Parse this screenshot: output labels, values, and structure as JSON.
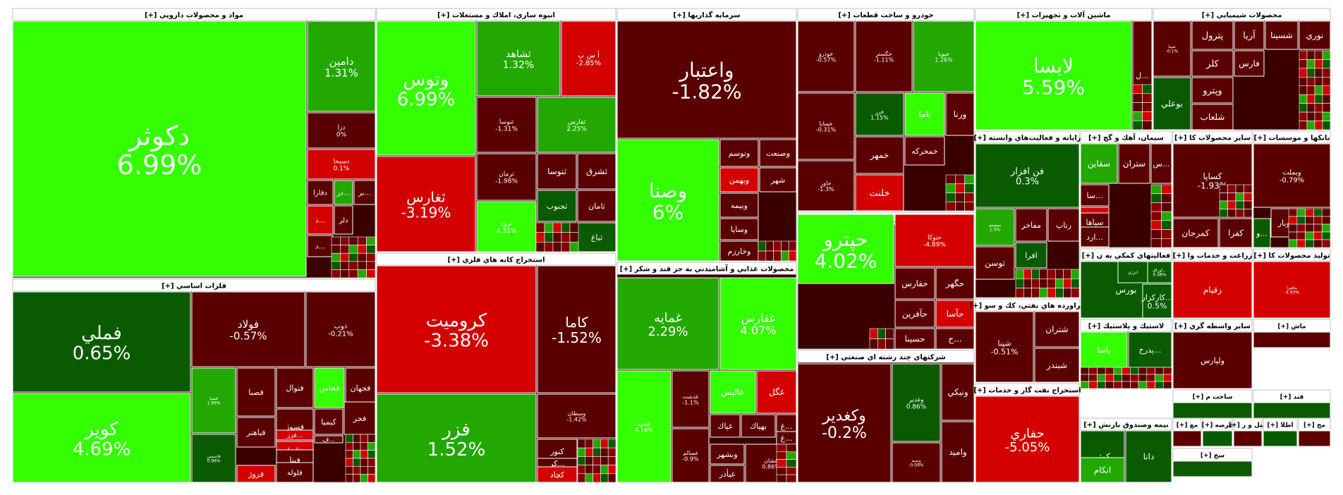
{
  "chart_data": {
    "type": "heatmap",
    "title": "Tehran Stock Exchange Market Map (Treemap)",
    "colors": {
      "lime": "#33ff00",
      "green": "#22a800",
      "dkgreen": "#0a5a00",
      "dkred": "#5a0000",
      "red": "#d40000",
      "brightred": "#ff1a1a",
      "header_bg": "#ffffff",
      "header_text": "#000000",
      "border": "#c0c0c0"
    },
    "sectors": [
      {
        "name": "مواد و محصولات دارويي [+]",
        "stocks": [
          {
            "name": "دكوثر",
            "change": "6.99%"
          },
          {
            "name": "دامين",
            "change": "1.31%"
          },
          {
            "name": "دزا",
            "change": "0%"
          },
          {
            "name": "دسبحا",
            "change": "0.1%"
          },
          {
            "name": "دفارا",
            "change": ""
          },
          {
            "name": "...در",
            "change": ""
          },
          {
            "name": "...بر",
            "change": ""
          },
          {
            "name": "...د",
            "change": ""
          },
          {
            "name": "دلر",
            "change": ""
          },
          {
            "name": "...د",
            "change": ""
          }
        ]
      },
      {
        "name": "انبوه سازي، املاك و مستغلات [+]",
        "stocks": [
          {
            "name": "وتوس",
            "change": "6.99%"
          },
          {
            "name": "ثشاهد",
            "change": "1.32%"
          },
          {
            "name": "آ س پ",
            "change": "-2.85%"
          },
          {
            "name": "ثغارس",
            "change": "-3.19%"
          },
          {
            "name": "ثنوسا",
            "change": "-1.31%"
          },
          {
            "name": "ثفارس",
            "change": "2.25%"
          },
          {
            "name": "ثرمان",
            "change": "-1.98%"
          },
          {
            "name": "ثنوسا",
            "change": ""
          },
          {
            "name": "ثشرق",
            "change": ""
          },
          {
            "name": "ثجنوب",
            "change": ""
          },
          {
            "name": "ثامان",
            "change": ""
          },
          {
            "name": "ثباغ",
            "change": ""
          },
          {
            "name": "ثمسكن",
            "change": ""
          },
          {
            "name": "ثرود",
            "change": "4.31%"
          }
        ]
      },
      {
        "name": "سرمايه گذاريها [+]",
        "stocks": [
          {
            "name": "واعتبار",
            "change": "-1.82%"
          },
          {
            "name": "وصنا",
            "change": "6%"
          },
          {
            "name": "وتوسم",
            "change": ""
          },
          {
            "name": "وصنعت",
            "change": ""
          },
          {
            "name": "وبهمن",
            "change": ""
          },
          {
            "name": "شهر",
            "change": ""
          },
          {
            "name": "وبيمه",
            "change": ""
          },
          {
            "name": "وسايا",
            "change": ""
          },
          {
            "name": "وخارزم",
            "change": ""
          }
        ]
      },
      {
        "name": "خودرو و ساخت قطعات [+]",
        "stocks": [
          {
            "name": "خودرو",
            "change": "-0.57%"
          },
          {
            "name": "خگستر",
            "change": "-1.11%"
          },
          {
            "name": "خپويا",
            "change": "1.26%"
          },
          {
            "name": "خساپا",
            "change": "-0.31%"
          },
          {
            "name": "خزر",
            "change": "1.15%"
          },
          {
            "name": "تاما",
            "change": ""
          },
          {
            "name": "ورنا",
            "change": ""
          },
          {
            "name": "خمهر",
            "change": ""
          },
          {
            "name": "خمحركه",
            "change": ""
          },
          {
            "name": "خلنت",
            "change": ""
          },
          {
            "name": "خاور",
            "change": "-1.3%"
          }
        ]
      },
      {
        "name": "ماشين آلات و تجهيزات [+]",
        "stocks": [
          {
            "name": "لابسا",
            "change": "5.59%"
          },
          {
            "name": "...ل",
            "change": ""
          }
        ]
      },
      {
        "name": "محصولات شيميايي [+]",
        "stocks": [
          {
            "name": "پترول",
            "change": ""
          },
          {
            "name": "آريا",
            "change": ""
          },
          {
            "name": "شسينا",
            "change": ""
          },
          {
            "name": "نوري",
            "change": ""
          },
          {
            "name": "كلر",
            "change": ""
          },
          {
            "name": "فارس",
            "change": ""
          },
          {
            "name": "وپترو",
            "change": ""
          },
          {
            "name": "بوعلي",
            "change": ""
          },
          {
            "name": "شلعاب",
            "change": ""
          },
          {
            "name": "شپنا",
            "change": "-0.1%"
          }
        ]
      },
      {
        "name": "رايانه و فعاليت‌هاي وابسته [+]",
        "stocks": [
          {
            "name": "فن افزار",
            "change": "0.3%"
          },
          {
            "name": "مفاخر",
            "change": ""
          },
          {
            "name": "رتاپ",
            "change": ""
          },
          {
            "name": "افرا",
            "change": ""
          },
          {
            "name": "توسن",
            "change": ""
          },
          {
            "name": "سيستم",
            "change": "1.5%"
          }
        ]
      },
      {
        "name": "سيمان، آهك و گچ [+]",
        "stocks": [
          {
            "name": "سقاين",
            "change": ""
          },
          {
            "name": "ستران",
            "change": ""
          },
          {
            "name": "...س",
            "change": ""
          },
          {
            "name": "...سا",
            "change": ""
          },
          {
            "name": "...سد",
            "change": ""
          },
          {
            "name": "سپاها",
            "change": ""
          },
          {
            "name": "...ارد",
            "change": ""
          }
        ]
      },
      {
        "name": "ساير محصولات كا [+]",
        "stocks": [
          {
            "name": "كساپا",
            "change": "-1.93%"
          },
          {
            "name": "كمرجان",
            "change": ""
          },
          {
            "name": "كفرا",
            "change": ""
          }
        ]
      },
      {
        "name": "بانكها و موسسات [+]",
        "stocks": [
          {
            "name": "وبملت",
            "change": "-0.79%"
          },
          {
            "name": "...وبار",
            "change": ""
          },
          {
            "name": "...و",
            "change": ""
          }
        ]
      },
      {
        "name": "فلزات اساسي [+]",
        "stocks": [
          {
            "name": "فملي",
            "change": "0.65%"
          },
          {
            "name": "كوير",
            "change": "4.69%"
          },
          {
            "name": "فولاد",
            "change": "-0.57%"
          },
          {
            "name": "ذوب",
            "change": "-0.21%"
          },
          {
            "name": "فسپا",
            "change": "1.99%"
          },
          {
            "name": "فصبا",
            "change": ""
          },
          {
            "name": "فنوال",
            "change": ""
          },
          {
            "name": "فخاس",
            "change": ""
          },
          {
            "name": "فجهان",
            "change": ""
          },
          {
            "name": "فباهنر",
            "change": ""
          },
          {
            "name": "فسوژ",
            "change": ""
          },
          {
            "name": "كيميا",
            "change": ""
          },
          {
            "name": "فجر",
            "change": ""
          },
          {
            "name": "فروژ",
            "change": ""
          },
          {
            "name": "فايرا",
            "change": ""
          },
          {
            "name": "فيتا",
            "change": ""
          },
          {
            "name": "فلوله",
            "change": ""
          },
          {
            "name": "...فزر",
            "change": ""
          },
          {
            "name": "...ف",
            "change": ""
          },
          {
            "name": "فاسمين",
            "change": "0.96%"
          }
        ]
      },
      {
        "name": "استخراج كانه هاي فلزي [+]",
        "stocks": [
          {
            "name": "كروميت",
            "change": "-3.38%"
          },
          {
            "name": "كاما",
            "change": "-1.52%"
          },
          {
            "name": "فزر",
            "change": "1.52%"
          },
          {
            "name": "وسطان",
            "change": "-1.42%"
          },
          {
            "name": "كنور",
            "change": ""
          },
          {
            "name": "...كر",
            "change": ""
          },
          {
            "name": "كچاد",
            "change": ""
          }
        ]
      },
      {
        "name": "محصولات غذايي و آشاميدني به جز قند و شكر [+]",
        "stocks": [
          {
            "name": "غمايه",
            "change": "2.29%"
          },
          {
            "name": "غفارس",
            "change": "4.07%"
          },
          {
            "name": "غشهد",
            "change": "4.16%"
          },
          {
            "name": "عالیس",
            "change": ""
          },
          {
            "name": "غگل",
            "change": ""
          },
          {
            "name": "غپاك",
            "change": ""
          },
          {
            "name": "بهپاك",
            "change": ""
          },
          {
            "name": "...غ",
            "change": ""
          },
          {
            "name": "...غ",
            "change": ""
          },
          {
            "name": "وبشهر",
            "change": ""
          },
          {
            "name": "غيأذر",
            "change": ""
          },
          {
            "name": "غشان",
            "change": "0.86%"
          },
          {
            "name": "غدشت",
            "change": "-1.1%"
          },
          {
            "name": "غسالم",
            "change": "-0.9%"
          }
        ]
      },
      {
        "name": "حمل ونقل، انبارداري و ارتباطات [+]",
        "stocks": [
          {
            "name": "حپترو",
            "change": "4.02%"
          },
          {
            "name": "حتوكا",
            "change": "-4.89%"
          },
          {
            "name": "حفارس",
            "change": ""
          },
          {
            "name": "حگهر",
            "change": ""
          },
          {
            "name": "حآفرين",
            "change": ""
          },
          {
            "name": "حآسا",
            "change": ""
          },
          {
            "name": "حسينا",
            "change": ""
          },
          {
            "name": "...ح",
            "change": ""
          }
        ]
      },
      {
        "name": "شركتهاي چند رشته اي صنعتي [+]",
        "stocks": [
          {
            "name": "وكغدير",
            "change": "-0.2%"
          },
          {
            "name": "وغدير",
            "change": "0.86%"
          },
          {
            "name": "ونيكي",
            "change": ""
          },
          {
            "name": "واميد",
            "change": ""
          },
          {
            "name": "وسپه",
            "change": "-0.09%"
          }
        ]
      },
      {
        "name": "فراورده هاي نفتي، كك و سو [+]",
        "stocks": [
          {
            "name": "شپنا",
            "change": "-0.51%"
          },
          {
            "name": "شتران",
            "change": ""
          },
          {
            "name": "شبندر",
            "change": ""
          }
        ]
      },
      {
        "name": "استخراج نفت گاز و خدمات [+]",
        "stocks": [
          {
            "name": "حفاري",
            "change": "-5.05%"
          }
        ]
      },
      {
        "name": "فعاليتهاي كمكي به ن [+]",
        "stocks": [
          {
            "name": "بورس",
            "change": ""
          },
          {
            "name": "انرژي",
            "change": ""
          },
          {
            "name": "...اوراق",
            "change": "0.48%"
          },
          {
            "name": "...كاركزار",
            "change": "0.5%"
          }
        ]
      },
      {
        "name": "زراعت و خدمات وا [+]",
        "stocks": [
          {
            "name": "زقيام",
            "change": ""
          },
          {
            "name": "زكوثر",
            "change": ""
          }
        ]
      },
      {
        "name": "توليد محصولات كا [+]",
        "stocks": [
          {
            "name": "ماهيرا",
            "change": "-4.93%"
          }
        ]
      },
      {
        "name": "ساير واسطه گري [+]",
        "stocks": [
          {
            "name": "ولپارس",
            "change": ""
          },
          {
            "name": "ولصنم",
            "change": ""
          },
          {
            "name": "ولتجار",
            "change": ""
          }
        ]
      },
      {
        "name": "لاستيك و پلاستيك [+]",
        "stocks": [
          {
            "name": "پاسا",
            "change": ""
          },
          {
            "name": "...پدرخ",
            "change": ""
          },
          {
            "name": "پسهند",
            "change": ""
          }
        ]
      },
      {
        "name": "بيمه وصندوق بازنش [+]",
        "stocks": [
          {
            "name": "كوثر",
            "change": ""
          },
          {
            "name": "دانا",
            "change": ""
          },
          {
            "name": "اتكام",
            "change": ""
          }
        ]
      }
    ],
    "small_sector_labels": [
      {
        "name": "ساخت م [+]"
      },
      {
        "name": "ماش [+]"
      },
      {
        "name": "قند [+]"
      },
      {
        "name": "مع [+]"
      },
      {
        "name": "عرضه [+]"
      },
      {
        "name": "هتل و ر [+]"
      },
      {
        "name": "اطلا [+]"
      },
      {
        "name": "مح [+]"
      },
      {
        "name": "سج [+]"
      }
    ]
  }
}
